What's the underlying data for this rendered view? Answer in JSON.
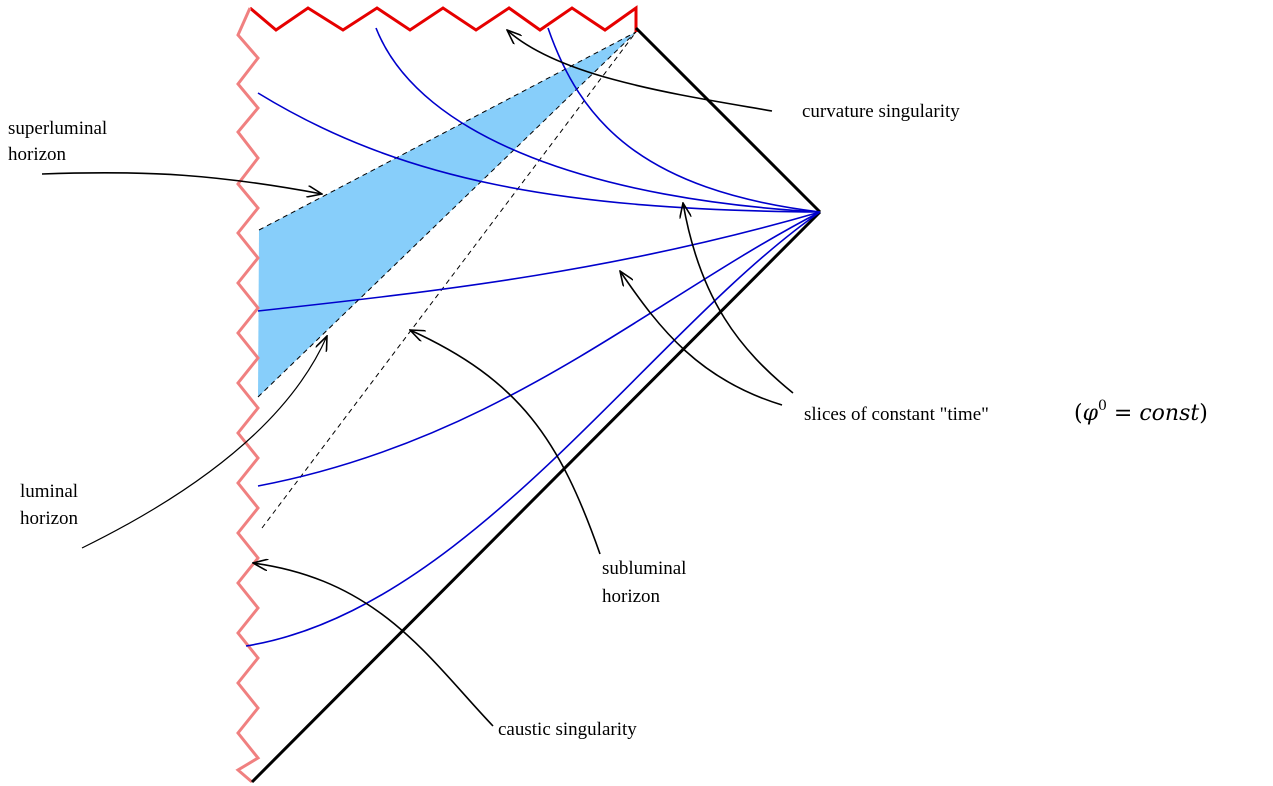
{
  "labels": {
    "curvature": "curvature singularity",
    "superluminal_1": "superluminal",
    "superluminal_2": "horizon",
    "luminal_1": "luminal",
    "luminal_2": "horizon",
    "subluminal_1": "subluminal",
    "subluminal_2": "horizon",
    "slices": "slices of constant \"time\"",
    "caustic": "caustic singularity"
  },
  "math": {
    "open_paren": "(",
    "phi": "φ",
    "superscript": "0",
    "equals": " = ",
    "const": "const",
    "close_paren": ")"
  },
  "colors": {
    "singularity": "#e60000",
    "caustic": "#f08080",
    "slices": "#0000cc",
    "shaded_region": "#87cefa",
    "boundary": "#000000"
  }
}
